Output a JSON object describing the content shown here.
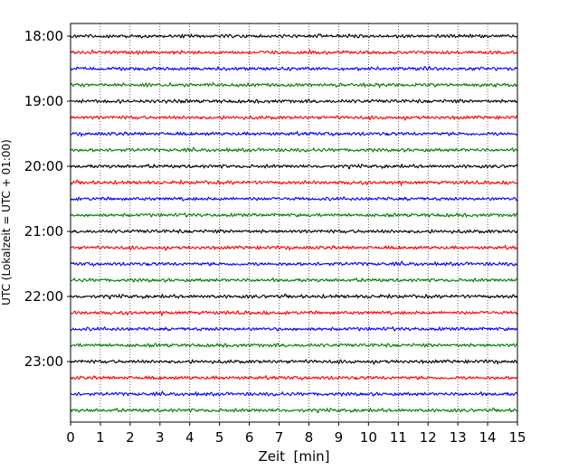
{
  "chart_data": {
    "type": "line",
    "title": "",
    "xlabel": "Zeit  [min]",
    "ylabel": "UTC (Lokalzeit = UTC + 01:00)",
    "xlim": [
      0,
      15
    ],
    "x_ticks": [
      0,
      1,
      2,
      3,
      4,
      5,
      6,
      7,
      8,
      9,
      10,
      11,
      12,
      13,
      14,
      15
    ],
    "y_tick_labels": [
      "18:00",
      "19:00",
      "20:00",
      "21:00",
      "22:00",
      "23:00"
    ],
    "grid_x": true,
    "trace_start": "18:00",
    "trace_interval_min": 15,
    "trace_count": 24,
    "trace_colors": [
      "#000000",
      "#ff0000",
      "#0000ff",
      "#008000"
    ]
  }
}
